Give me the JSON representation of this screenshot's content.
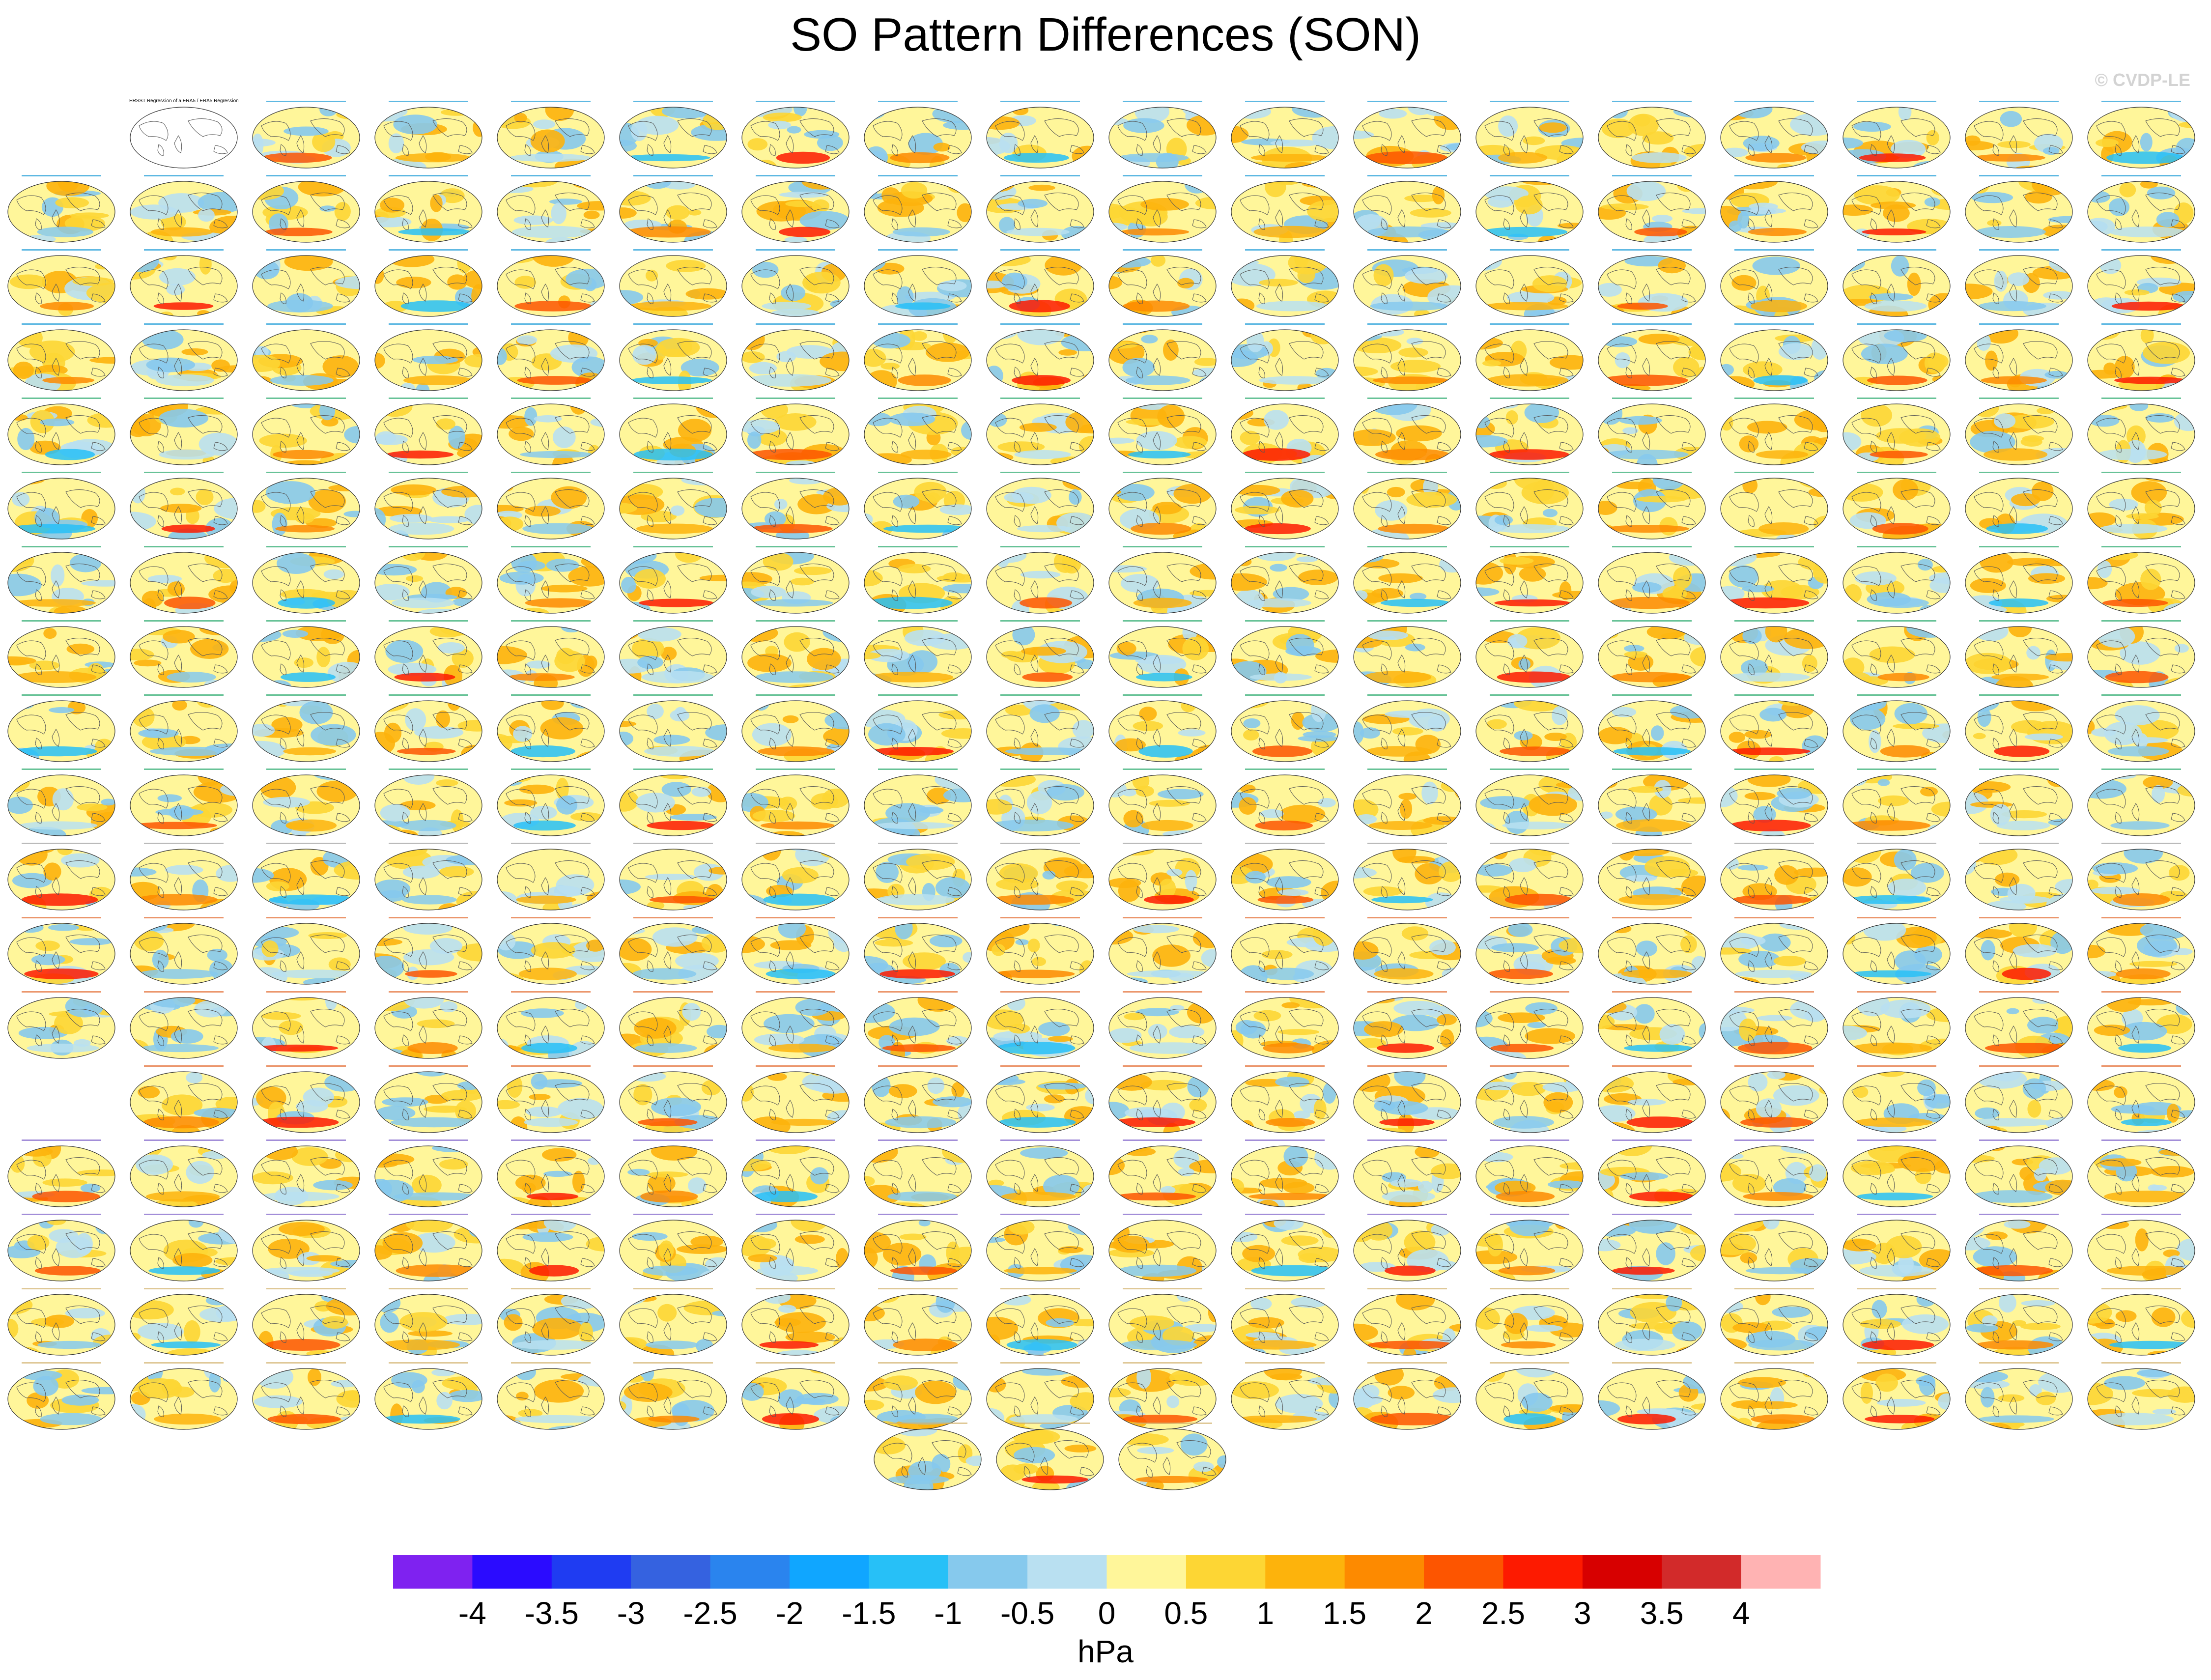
{
  "figure": {
    "title": "SO Pattern Differences (SON)",
    "watermark": "© CVDP-LE"
  },
  "colorbar": {
    "unit": "hPa",
    "tick_labels": [
      "-4",
      "-3.5",
      "-3",
      "-2.5",
      "-2",
      "-1.5",
      "-1",
      "-0.5",
      "0",
      "0.5",
      "1",
      "1.5",
      "2",
      "2.5",
      "3",
      "3.5",
      "4"
    ],
    "colors": [
      "#7f22f0",
      "#2b0bff",
      "#1f3cf2",
      "#3562e0",
      "#2a84ee",
      "#10a6ff",
      "#27c0f7",
      "#86c9ed",
      "#b9e0f1",
      "#fff69a",
      "#fdd634",
      "#fdb30c",
      "#fd8a00",
      "#fd5500",
      "#fd1a00",
      "#d70000",
      "#d22a2a",
      "#ffb3b3"
    ]
  },
  "chart_data": {
    "type": "heatmap",
    "title": "SO Pattern Differences (SON)",
    "description_units": "hPa",
    "levels": [
      -4,
      -3.5,
      -3,
      -2.5,
      -2,
      -1.5,
      -1,
      -0.5,
      0,
      0.5,
      1,
      1.5,
      2,
      2.5,
      3,
      3.5,
      4
    ],
    "panel_grid": {
      "columns": 18,
      "rows": 19,
      "blank_cells": [
        [
          0,
          0
        ],
        [
          13,
          0
        ]
      ],
      "reference_panel": [
        0,
        1
      ],
      "last_row_columns": [
        7,
        8,
        9
      ]
    },
    "reference_panel_title": "ERSST Regression of a ERA5 / ERA5 Regression of a ERA5",
    "group_title_colors": [
      "#1a9ad6",
      "#1a9ad6",
      "#1a9ad6",
      "#1a9ad6",
      "#27a86b",
      "#27a86b",
      "#27a86b",
      "#27a86b",
      "#27a86b",
      "#27a86b",
      "#9c9c9c",
      "#e36a2e",
      "#e36a2e",
      "#e36a2e",
      "#7a5cc8",
      "#7a5cc8",
      "#d2b06b",
      "#d2b06b",
      "#d2b06b"
    ]
  }
}
